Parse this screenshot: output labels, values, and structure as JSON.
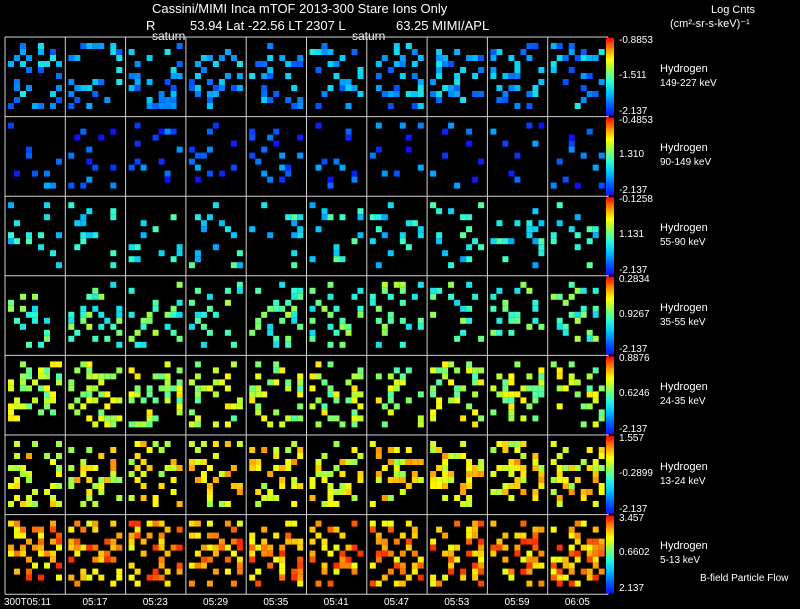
{
  "header": {
    "title": "Cassini/MIMI Inca mTOF  2013-300    Stare    Ions Only",
    "info_r": "R",
    "info_rest": "53.94 Lat -22.56 LT 2307 L",
    "info_l": "63.25  MIMI/APL",
    "saturn_label_1": "saturn",
    "saturn_label_2": "saturn",
    "units_line1": "Log Cnts",
    "units_line2": "(cm²-sr-s-keV)⁻¹"
  },
  "footer": {
    "flow_label": "B-field Particle Flow"
  },
  "chart_data": {
    "type": "heatmap",
    "title": "Cassini/MIMI Inca mTOF  2013-300    Stare    Ions Only",
    "time_labels": [
      "300T05:11",
      "05:17",
      "05:23",
      "05:29",
      "05:35",
      "05:41",
      "05:47",
      "05:53",
      "05:59",
      "06:05"
    ],
    "colormap": "rainbow (blue = min, red = max)",
    "rows": [
      {
        "species": "Hydrogen",
        "energy": "149-227 keV",
        "max": "-0.8853",
        "mid": "-1.511",
        "min": "-2.137"
      },
      {
        "species": "Hydrogen",
        "energy": "90-149 keV",
        "max": "-0.4853",
        "mid": "1.310",
        "min": "-2.137"
      },
      {
        "species": "Hydrogen",
        "energy": "55-90 keV",
        "max": "-0.1258",
        "mid": "1.131",
        "min": "-2.137"
      },
      {
        "species": "Hydrogen",
        "energy": "35-55 keV",
        "max": "0.2834",
        "mid": "0.9267",
        "min": "-2.137"
      },
      {
        "species": "Hydrogen",
        "energy": "24-35 keV",
        "max": "0.8876",
        "mid": "0.6246",
        "min": "-2.137"
      },
      {
        "species": "Hydrogen",
        "energy": "13-24 keV",
        "max": "1.557",
        "mid": "-0.2899",
        "min": "-2.137"
      },
      {
        "species": "Hydrogen",
        "energy": "5-13 keV",
        "max": "3.457",
        "mid": "0.6602",
        "min": "2.137"
      }
    ],
    "row_fill_levels": [
      0.25,
      0.12,
      0.38,
      0.48,
      0.62,
      0.72,
      0.82
    ],
    "row_densities": [
      0.22,
      0.1,
      0.14,
      0.2,
      0.26,
      0.32,
      0.34
    ],
    "grid": true
  }
}
